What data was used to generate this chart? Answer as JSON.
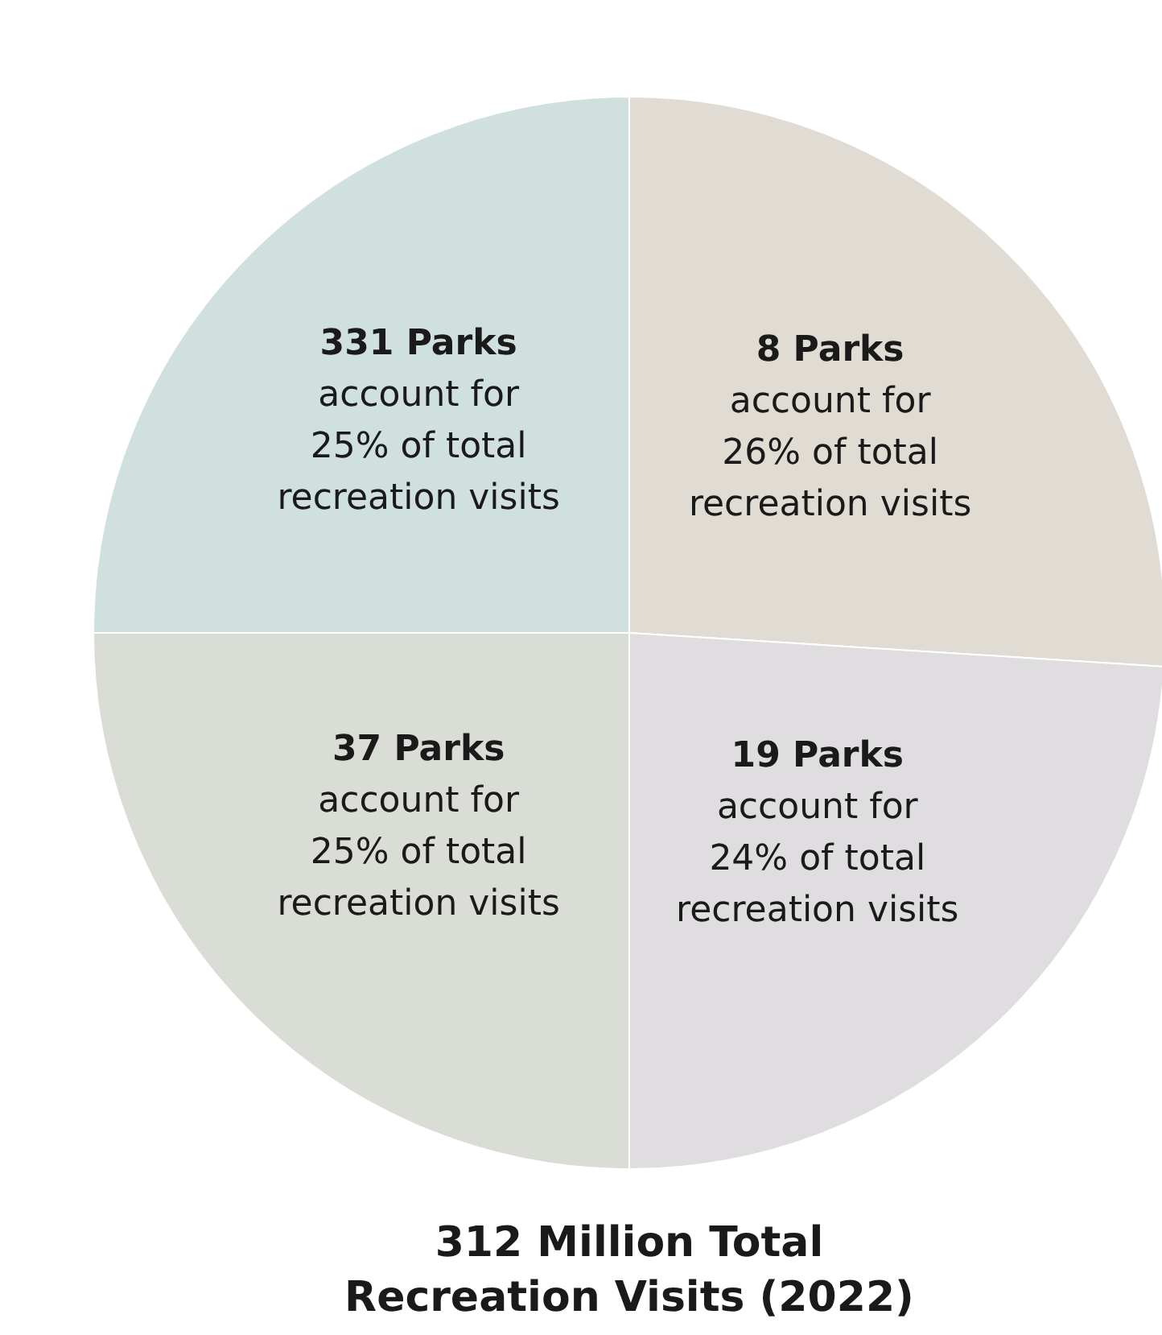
{
  "chart_data": {
    "type": "pie",
    "title": "312 Million Total Recreation Visits (2022)",
    "categories": [
      "8 Parks",
      "19 Parks",
      "37 Parks",
      "331 Parks"
    ],
    "values": [
      26,
      24,
      25,
      25
    ],
    "value_labels": [
      "account for\n26% of total\nrecreation visits",
      "account for\n24% of total\nrecreation visits",
      "account for\n25% of total\nrecreation visits",
      "account for\n25% of total\nrecreation visits"
    ],
    "colors": [
      "#e0dcd3",
      "#dfdde0",
      "#d9ddd6",
      "#d0e0df"
    ],
    "legend": false
  }
}
